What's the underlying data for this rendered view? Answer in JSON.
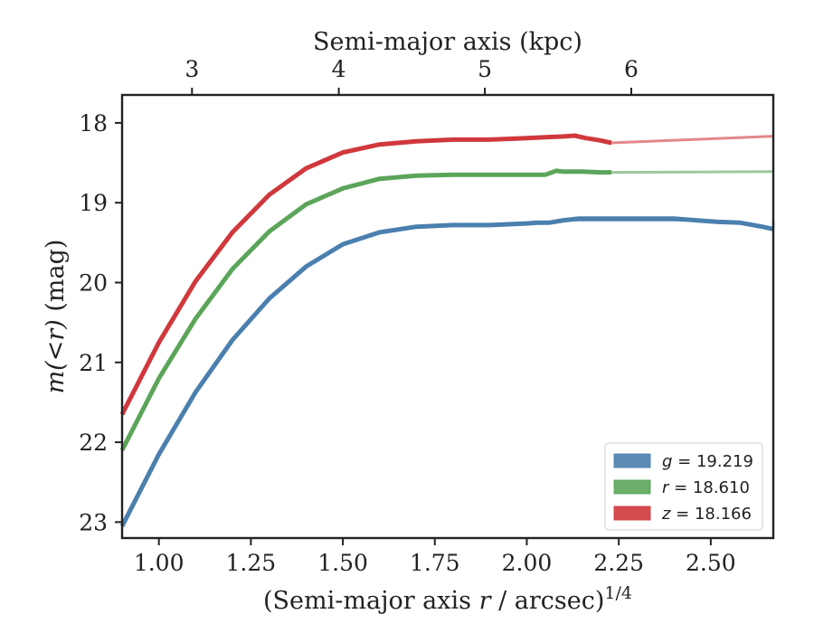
{
  "chart_data": {
    "type": "line",
    "xlabel": "(Semi-major axis r / arcsec)^1/4",
    "xlabel_parts": {
      "main": "(Semi-major axis ",
      "var": "r",
      "rest": " / arcsec)",
      "sup": "1/4"
    },
    "ylabel": "m(< r) (mag)",
    "ylabel_parts": {
      "math": "m(<r)",
      "rest": " (mag)"
    },
    "top_xlabel": "Semi-major axis (kpc)",
    "xlim": [
      0.9,
      2.67
    ],
    "ylim": [
      23.2,
      17.65
    ],
    "y_inverted": true,
    "x_ticks": [
      "1.00",
      "1.25",
      "1.50",
      "1.75",
      "2.00",
      "2.25",
      "2.50"
    ],
    "x_tick_values": [
      1.0,
      1.25,
      1.5,
      1.75,
      2.0,
      2.25,
      2.5
    ],
    "y_ticks": [
      "18",
      "19",
      "20",
      "21",
      "22",
      "23"
    ],
    "y_tick_values": [
      18,
      19,
      20,
      21,
      22,
      23
    ],
    "top_ticks": [
      "3",
      "4",
      "5",
      "6"
    ],
    "top_tick_positions_x": [
      1.09,
      1.489,
      1.886,
      2.284
    ],
    "grid": false,
    "legend_position": "lower-right",
    "series": [
      {
        "name": "g = 19.219",
        "legend_var": "g",
        "legend_val": "= 19.219",
        "color": "#4a7fae",
        "fit_level": 19.219,
        "x": [
          0.9,
          1.0,
          1.1,
          1.2,
          1.3,
          1.4,
          1.5,
          1.6,
          1.7,
          1.8,
          1.9,
          2.0,
          2.03,
          2.06,
          2.1,
          2.14,
          2.2,
          2.26,
          2.32,
          2.4,
          2.46,
          2.52,
          2.58,
          2.64,
          2.67
        ],
        "values": [
          23.05,
          22.15,
          21.37,
          20.72,
          20.2,
          19.8,
          19.52,
          19.37,
          19.3,
          19.28,
          19.28,
          19.26,
          19.25,
          19.25,
          19.22,
          19.2,
          19.2,
          19.2,
          19.2,
          19.2,
          19.22,
          19.24,
          19.25,
          19.3,
          19.33
        ]
      },
      {
        "name": "r = 18.610",
        "legend_var": "r",
        "legend_val": "= 18.610",
        "color": "#5ba55a",
        "fit_level": 18.61,
        "x": [
          0.9,
          1.0,
          1.1,
          1.2,
          1.3,
          1.4,
          1.5,
          1.6,
          1.7,
          1.8,
          1.9,
          2.0,
          2.05,
          2.08,
          2.1,
          2.15,
          2.2,
          2.23
        ],
        "values": [
          22.1,
          21.2,
          20.45,
          19.83,
          19.36,
          19.02,
          18.82,
          18.7,
          18.66,
          18.65,
          18.65,
          18.65,
          18.65,
          18.6,
          18.61,
          18.61,
          18.62,
          18.62
        ]
      },
      {
        "name": "z = 18.166",
        "legend_var": "z",
        "legend_val": "= 18.166",
        "color": "#d0383c",
        "fit_level": 18.166,
        "x": [
          0.9,
          1.0,
          1.1,
          1.2,
          1.3,
          1.4,
          1.5,
          1.6,
          1.7,
          1.8,
          1.9,
          2.0,
          2.05,
          2.1,
          2.13,
          2.16,
          2.2,
          2.23
        ],
        "values": [
          21.65,
          20.75,
          19.98,
          19.37,
          18.9,
          18.57,
          18.37,
          18.27,
          18.23,
          18.21,
          18.21,
          18.19,
          18.18,
          18.17,
          18.16,
          18.19,
          18.22,
          18.25
        ]
      }
    ]
  }
}
